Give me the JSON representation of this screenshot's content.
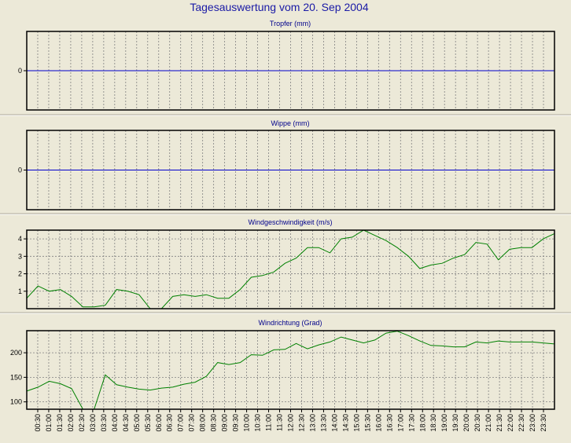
{
  "title": "Tagesauswertung vom 20. Sep 2004",
  "colors": {
    "background": "#ece9d8",
    "plot_background": "#ece9d8",
    "zero_line": "#0000cc",
    "series_line": "#008000",
    "grid": "#808080",
    "title_text": "#1a1aa6",
    "panel_title_text": "#00008b"
  },
  "x_tick_labels": [
    "00:30",
    "01:00",
    "01:30",
    "02:00",
    "02:30",
    "03:00",
    "03:30",
    "04:00",
    "04:30",
    "05:00",
    "05:30",
    "06:00",
    "06:30",
    "07:00",
    "07:30",
    "08:00",
    "08:30",
    "09:00",
    "09:30",
    "10:00",
    "10:30",
    "11:00",
    "11:30",
    "12:00",
    "12:30",
    "13:00",
    "13:30",
    "14:00",
    "14:30",
    "15:00",
    "15:30",
    "16:00",
    "16:30",
    "17:00",
    "17:30",
    "18:00",
    "18:30",
    "19:00",
    "19:30",
    "20:00",
    "20:30",
    "21:00",
    "21:30",
    "22:00",
    "22:30",
    "23:00",
    "23:30"
  ],
  "chart_data": [
    {
      "type": "line",
      "title": "Tropfer (mm)",
      "yticks": [
        0
      ],
      "ylim": [
        -1,
        1
      ],
      "grid": true,
      "series": [
        {
          "values": [
            0,
            0,
            0,
            0,
            0,
            0,
            0,
            0,
            0,
            0,
            0,
            0,
            0,
            0,
            0,
            0,
            0,
            0,
            0,
            0,
            0,
            0,
            0,
            0,
            0,
            0,
            0,
            0,
            0,
            0,
            0,
            0,
            0,
            0,
            0,
            0,
            0,
            0,
            0,
            0,
            0,
            0,
            0,
            0,
            0,
            0,
            0,
            0
          ]
        }
      ]
    },
    {
      "type": "line",
      "title": "Wippe (mm)",
      "yticks": [
        0
      ],
      "ylim": [
        -1,
        1
      ],
      "grid": true,
      "series": [
        {
          "values": [
            0,
            0,
            0,
            0,
            0,
            0,
            0,
            0,
            0,
            0,
            0,
            0,
            0,
            0,
            0,
            0,
            0,
            0,
            0,
            0,
            0,
            0,
            0,
            0,
            0,
            0,
            0,
            0,
            0,
            0,
            0,
            0,
            0,
            0,
            0,
            0,
            0,
            0,
            0,
            0,
            0,
            0,
            0,
            0,
            0,
            0,
            0,
            0
          ]
        }
      ]
    },
    {
      "type": "line",
      "title": "Windgeschwindigkeit (m/s)",
      "yticks": [
        1,
        2,
        3,
        4
      ],
      "ylim": [
        0,
        4.5
      ],
      "grid": true,
      "series": [
        {
          "values": [
            0.6,
            1.3,
            1.0,
            1.1,
            0.7,
            0.1,
            0.1,
            0.2,
            1.1,
            1.0,
            0.8,
            0.0,
            0.0,
            0.7,
            0.8,
            0.7,
            0.8,
            0.6,
            0.6,
            1.1,
            1.8,
            1.9,
            2.1,
            2.6,
            2.9,
            3.5,
            3.5,
            3.2,
            4.0,
            4.1,
            4.5,
            4.2,
            3.9,
            3.5,
            3.0,
            2.3,
            2.5,
            2.6,
            2.9,
            3.1,
            3.8,
            3.7,
            2.8,
            3.4,
            3.5,
            3.5,
            4.0,
            4.3
          ]
        }
      ]
    },
    {
      "type": "line",
      "title": "Windrichtung (Grad)",
      "yticks": [
        100,
        150,
        200
      ],
      "ylim": [
        85,
        245
      ],
      "grid": true,
      "series": [
        {
          "values": [
            122,
            130,
            142,
            137,
            127,
            85,
            85,
            155,
            135,
            130,
            126,
            124,
            128,
            130,
            136,
            140,
            152,
            180,
            176,
            180,
            196,
            195,
            206,
            207,
            219,
            208,
            216,
            222,
            232,
            226,
            220,
            226,
            240,
            244,
            235,
            224,
            215,
            214,
            212,
            212,
            222,
            220,
            224,
            222,
            222,
            222,
            220,
            218
          ]
        }
      ]
    }
  ]
}
